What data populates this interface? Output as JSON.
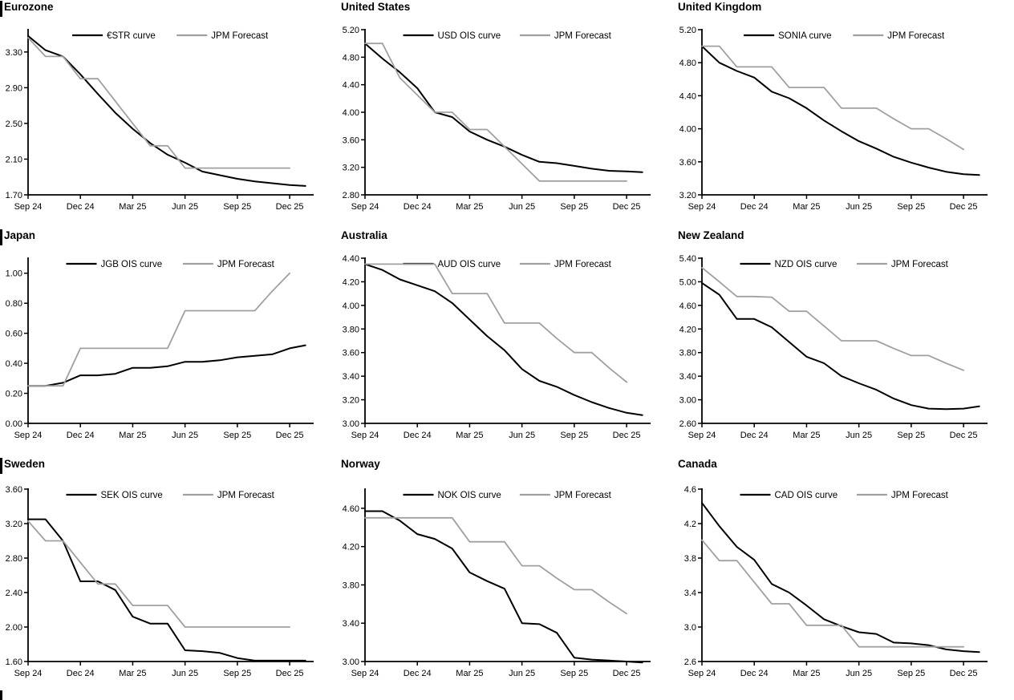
{
  "chart_data": [
    {
      "type": "line",
      "title": "Eurozone",
      "x_labels": [
        "Sep 24",
        "Dec 24",
        "Mar 25",
        "Jun 25",
        "Sep 25",
        "Dec 25"
      ],
      "x_label_months": [
        0,
        3,
        6,
        9,
        12,
        15
      ],
      "x_max": 16.1,
      "ylim": [
        1.7,
        3.55
      ],
      "y_ticks": [
        "1.70",
        "2.10",
        "2.50",
        "2.90",
        "3.30"
      ],
      "grid": "off",
      "legend_position": "top-center",
      "series": [
        {
          "name": "€STR curve",
          "color": "#000000",
          "width": 2,
          "x": [
            0,
            1,
            2,
            3,
            4,
            5,
            6,
            7,
            8,
            9,
            10,
            11,
            12,
            13,
            14,
            15,
            15.9
          ],
          "values": [
            3.48,
            3.32,
            3.25,
            3.05,
            2.83,
            2.62,
            2.44,
            2.28,
            2.15,
            2.06,
            1.96,
            1.92,
            1.88,
            1.85,
            1.83,
            1.81,
            1.8
          ]
        },
        {
          "name": "JPM Forecast",
          "color": "#a0a0a0",
          "width": 1.8,
          "x": [
            0,
            1,
            2,
            3,
            4,
            5,
            6,
            7,
            8,
            9,
            10,
            11,
            12,
            13,
            14,
            15
          ],
          "values": [
            3.46,
            3.25,
            3.25,
            3.0,
            3.0,
            2.75,
            2.5,
            2.25,
            2.25,
            2.0,
            2.0,
            2.0,
            2.0,
            2.0,
            2.0,
            2.0
          ]
        }
      ]
    },
    {
      "type": "line",
      "title": "United States",
      "x_labels": [
        "Sep 24",
        "Dec 24",
        "Mar 25",
        "Jun 25",
        "Sep 25",
        "Dec 25"
      ],
      "x_label_months": [
        0,
        3,
        6,
        9,
        12,
        15
      ],
      "x_max": 16.1,
      "ylim": [
        2.8,
        5.2
      ],
      "y_ticks": [
        "2.80",
        "3.20",
        "3.60",
        "4.00",
        "4.40",
        "4.80",
        "5.20"
      ],
      "grid": "off",
      "legend_position": "top-center",
      "series": [
        {
          "name": "USD OIS curve",
          "color": "#000000",
          "width": 2,
          "x": [
            0,
            1,
            2,
            3,
            4,
            5,
            6,
            7,
            8,
            9,
            10,
            11,
            12,
            13,
            14,
            15,
            15.9
          ],
          "values": [
            5.0,
            4.78,
            4.58,
            4.35,
            4.0,
            3.93,
            3.72,
            3.6,
            3.5,
            3.38,
            3.28,
            3.26,
            3.22,
            3.18,
            3.15,
            3.14,
            3.13
          ]
        },
        {
          "name": "JPM Forecast",
          "color": "#a0a0a0",
          "width": 1.8,
          "x": [
            0,
            1,
            2,
            3,
            4,
            5,
            6,
            7,
            8,
            9,
            10,
            11,
            12,
            13,
            14,
            15
          ],
          "values": [
            5.0,
            5.0,
            4.5,
            4.25,
            4.0,
            4.0,
            3.75,
            3.75,
            3.5,
            3.25,
            3.0,
            3.0,
            3.0,
            3.0,
            3.0,
            3.0
          ]
        }
      ]
    },
    {
      "type": "line",
      "title": "United Kingdom",
      "x_labels": [
        "Sep 24",
        "Dec 24",
        "Mar 25",
        "Jun 25",
        "Sep 25",
        "Dec 25"
      ],
      "x_label_months": [
        0,
        3,
        6,
        9,
        12,
        15
      ],
      "x_max": 16.1,
      "ylim": [
        3.2,
        5.2
      ],
      "y_ticks": [
        "3.20",
        "3.60",
        "4.00",
        "4.40",
        "4.80",
        "5.20"
      ],
      "grid": "off",
      "legend_position": "top-center",
      "series": [
        {
          "name": "SONIA curve",
          "color": "#000000",
          "width": 2,
          "x": [
            0,
            1,
            2,
            3,
            4,
            5,
            6,
            7,
            8,
            9,
            10,
            11,
            12,
            13,
            14,
            15,
            15.9
          ],
          "values": [
            5.0,
            4.8,
            4.7,
            4.62,
            4.45,
            4.37,
            4.25,
            4.1,
            3.97,
            3.85,
            3.76,
            3.66,
            3.59,
            3.53,
            3.48,
            3.45,
            3.44
          ]
        },
        {
          "name": "JPM Forecast",
          "color": "#a0a0a0",
          "width": 1.8,
          "x": [
            0,
            1,
            2,
            3,
            4,
            5,
            6,
            7,
            8,
            9,
            10,
            11,
            12,
            13,
            14,
            15
          ],
          "values": [
            5.0,
            5.0,
            4.75,
            4.75,
            4.75,
            4.5,
            4.5,
            4.5,
            4.25,
            4.25,
            4.25,
            4.12,
            4.0,
            4.0,
            3.88,
            3.75
          ]
        }
      ]
    },
    {
      "type": "line",
      "title": "Japan",
      "x_labels": [
        "Sep 24",
        "Dec 24",
        "Mar 25",
        "Jun 25",
        "Sep 25",
        "Dec 25"
      ],
      "x_label_months": [
        0,
        3,
        6,
        9,
        12,
        15
      ],
      "x_max": 16.1,
      "ylim": [
        0.0,
        1.1
      ],
      "y_ticks": [
        "0.00",
        "0.20",
        "0.40",
        "0.60",
        "0.80",
        "1.00"
      ],
      "grid": "off",
      "legend_position": "top-center",
      "series": [
        {
          "name": "JGB OIS curve",
          "color": "#000000",
          "width": 2,
          "x": [
            0,
            1,
            2,
            3,
            4,
            5,
            6,
            7,
            8,
            9,
            10,
            11,
            12,
            13,
            14,
            15,
            15.9
          ],
          "values": [
            0.25,
            0.25,
            0.27,
            0.32,
            0.32,
            0.33,
            0.37,
            0.37,
            0.38,
            0.41,
            0.41,
            0.42,
            0.44,
            0.45,
            0.46,
            0.5,
            0.52
          ]
        },
        {
          "name": "JPM Forecast",
          "color": "#a0a0a0",
          "width": 1.8,
          "x": [
            0,
            1,
            2,
            3,
            4,
            5,
            6,
            7,
            8,
            9,
            10,
            11,
            12,
            13,
            14,
            15
          ],
          "values": [
            0.25,
            0.25,
            0.25,
            0.5,
            0.5,
            0.5,
            0.5,
            0.5,
            0.5,
            0.75,
            0.75,
            0.75,
            0.75,
            0.75,
            0.88,
            1.0
          ]
        }
      ]
    },
    {
      "type": "line",
      "title": "Australia",
      "x_labels": [
        "Sep 24",
        "Dec 24",
        "Mar 25",
        "Jun 25",
        "Sep 25",
        "Dec 25"
      ],
      "x_label_months": [
        0,
        3,
        6,
        9,
        12,
        15
      ],
      "x_max": 16.1,
      "ylim": [
        3.0,
        4.4
      ],
      "y_ticks": [
        "3.00",
        "3.20",
        "3.40",
        "3.60",
        "3.80",
        "4.00",
        "4.20",
        "4.40"
      ],
      "grid": "off",
      "legend_position": "top-center",
      "series": [
        {
          "name": "AUD OIS curve",
          "color": "#000000",
          "width": 2,
          "x": [
            0,
            1,
            2,
            3,
            4,
            5,
            6,
            7,
            8,
            9,
            10,
            11,
            12,
            13,
            14,
            15,
            15.9
          ],
          "values": [
            4.35,
            4.3,
            4.22,
            4.17,
            4.12,
            4.02,
            3.88,
            3.74,
            3.62,
            3.46,
            3.36,
            3.31,
            3.24,
            3.18,
            3.13,
            3.09,
            3.07
          ]
        },
        {
          "name": "JPM Forecast",
          "color": "#a0a0a0",
          "width": 1.8,
          "x": [
            0,
            1,
            2,
            3,
            4,
            5,
            6,
            7,
            8,
            9,
            10,
            11,
            12,
            13,
            14,
            15
          ],
          "values": [
            4.35,
            4.35,
            4.35,
            4.35,
            4.35,
            4.1,
            4.1,
            4.1,
            3.85,
            3.85,
            3.85,
            3.72,
            3.6,
            3.6,
            3.47,
            3.35
          ]
        }
      ]
    },
    {
      "type": "line",
      "title": "New Zealand",
      "x_labels": [
        "Sep 24",
        "Dec 24",
        "Mar 25",
        "Jun 25",
        "Sep 25",
        "Dec 25"
      ],
      "x_label_months": [
        0,
        3,
        6,
        9,
        12,
        15
      ],
      "x_max": 16.1,
      "ylim": [
        2.6,
        5.4
      ],
      "y_ticks": [
        "2.60",
        "3.00",
        "3.40",
        "3.80",
        "4.20",
        "4.60",
        "5.00",
        "5.40"
      ],
      "grid": "off",
      "legend_position": "top-center",
      "series": [
        {
          "name": "NZD OIS curve",
          "color": "#000000",
          "width": 2,
          "x": [
            0,
            1,
            2,
            3,
            4,
            5,
            6,
            7,
            8,
            9,
            10,
            11,
            12,
            13,
            14,
            15,
            15.9
          ],
          "values": [
            4.98,
            4.78,
            4.37,
            4.37,
            4.23,
            3.98,
            3.73,
            3.62,
            3.4,
            3.28,
            3.17,
            3.02,
            2.91,
            2.85,
            2.84,
            2.85,
            2.89
          ]
        },
        {
          "name": "JPM Forecast",
          "color": "#a0a0a0",
          "width": 1.8,
          "x": [
            0,
            1,
            2,
            3,
            4,
            5,
            6,
            7,
            8,
            9,
            10,
            11,
            12,
            13,
            14,
            15
          ],
          "values": [
            5.24,
            5.0,
            4.75,
            4.75,
            4.74,
            4.5,
            4.5,
            4.25,
            4.0,
            4.0,
            4.0,
            3.87,
            3.75,
            3.75,
            3.62,
            3.5
          ]
        }
      ]
    },
    {
      "type": "line",
      "title": "Sweden",
      "x_labels": [
        "Sep 24",
        "Dec 24",
        "Mar 25",
        "Jun 25",
        "Sep 25",
        "Dec 25"
      ],
      "x_label_months": [
        0,
        3,
        6,
        9,
        12,
        15
      ],
      "x_max": 16.1,
      "ylim": [
        1.6,
        3.6
      ],
      "y_ticks": [
        "1.60",
        "2.00",
        "2.40",
        "2.80",
        "3.20",
        "3.60"
      ],
      "grid": "off",
      "legend_position": "top-center",
      "series": [
        {
          "name": "SEK OIS curve",
          "color": "#000000",
          "width": 2,
          "x": [
            0,
            1,
            2,
            3,
            4,
            5,
            6,
            7,
            8,
            9,
            10,
            11,
            12,
            13,
            14,
            15,
            15.9
          ],
          "values": [
            3.25,
            3.25,
            3.0,
            2.53,
            2.53,
            2.43,
            2.12,
            2.04,
            2.04,
            1.73,
            1.72,
            1.7,
            1.64,
            1.61,
            1.61,
            1.61,
            1.61
          ]
        },
        {
          "name": "JPM Forecast",
          "color": "#a0a0a0",
          "width": 1.8,
          "x": [
            0,
            1,
            2,
            3,
            4,
            5,
            6,
            7,
            8,
            9,
            10,
            11,
            12,
            13,
            14,
            15
          ],
          "values": [
            3.23,
            3.0,
            3.0,
            2.75,
            2.5,
            2.5,
            2.25,
            2.25,
            2.25,
            2.0,
            2.0,
            2.0,
            2.0,
            2.0,
            2.0,
            2.0
          ]
        }
      ]
    },
    {
      "type": "line",
      "title": "Norway",
      "x_labels": [
        "Sep 24",
        "Dec 24",
        "Mar 25",
        "Jun 25",
        "Sep 25",
        "Dec 25"
      ],
      "x_label_months": [
        0,
        3,
        6,
        9,
        12,
        15
      ],
      "x_max": 16.1,
      "ylim": [
        3.0,
        4.8
      ],
      "y_ticks": [
        "3.00",
        "3.40",
        "3.80",
        "4.20",
        "4.60"
      ],
      "grid": "off",
      "legend_position": "top-center",
      "series": [
        {
          "name": "NOK OIS curve",
          "color": "#000000",
          "width": 2,
          "x": [
            0,
            1,
            2,
            3,
            4,
            5,
            6,
            7,
            8,
            9,
            10,
            11,
            12,
            13,
            14,
            15,
            15.9
          ],
          "values": [
            4.57,
            4.57,
            4.47,
            4.33,
            4.28,
            4.18,
            3.93,
            3.84,
            3.76,
            3.4,
            3.39,
            3.3,
            3.04,
            3.02,
            3.01,
            3.0,
            2.99
          ]
        },
        {
          "name": "JPM Forecast",
          "color": "#a0a0a0",
          "width": 1.8,
          "x": [
            0,
            1,
            2,
            3,
            4,
            5,
            6,
            7,
            8,
            9,
            10,
            11,
            12,
            13,
            14,
            15
          ],
          "values": [
            4.5,
            4.5,
            4.5,
            4.5,
            4.5,
            4.5,
            4.25,
            4.25,
            4.25,
            4.0,
            4.0,
            3.87,
            3.75,
            3.75,
            3.62,
            3.5
          ]
        }
      ]
    },
    {
      "type": "line",
      "title": "Canada",
      "x_labels": [
        "Sep 24",
        "Dec 24",
        "Mar 25",
        "Jun 25",
        "Sep 25",
        "Dec 25"
      ],
      "x_label_months": [
        0,
        3,
        6,
        9,
        12,
        15
      ],
      "x_max": 16.1,
      "ylim": [
        2.6,
        4.6
      ],
      "y_ticks": [
        "2.6",
        "3.0",
        "3.4",
        "3.8",
        "4.2",
        "4.6"
      ],
      "grid": "off",
      "legend_position": "top-center",
      "series": [
        {
          "name": "CAD OIS curve",
          "color": "#000000",
          "width": 2,
          "x": [
            0,
            1,
            2,
            3,
            4,
            5,
            6,
            7,
            8,
            9,
            10,
            11,
            12,
            13,
            14,
            15,
            15.9
          ],
          "values": [
            4.44,
            4.17,
            3.93,
            3.78,
            3.5,
            3.4,
            3.25,
            3.09,
            3.01,
            2.94,
            2.92,
            2.82,
            2.81,
            2.79,
            2.74,
            2.72,
            2.71
          ]
        },
        {
          "name": "JPM Forecast",
          "color": "#a0a0a0",
          "width": 1.8,
          "x": [
            0,
            1,
            2,
            3,
            4,
            5,
            6,
            7,
            8,
            9,
            10,
            11,
            12,
            13,
            14,
            15
          ],
          "values": [
            4.01,
            3.77,
            3.77,
            3.52,
            3.27,
            3.27,
            3.02,
            3.02,
            3.02,
            2.77,
            2.77,
            2.77,
            2.77,
            2.77,
            2.77,
            2.77
          ]
        }
      ]
    }
  ],
  "style": {
    "curve_color": "#000000",
    "forecast_color": "#a0a0a0",
    "axis_color": "#000000",
    "background": "#ffffff"
  }
}
